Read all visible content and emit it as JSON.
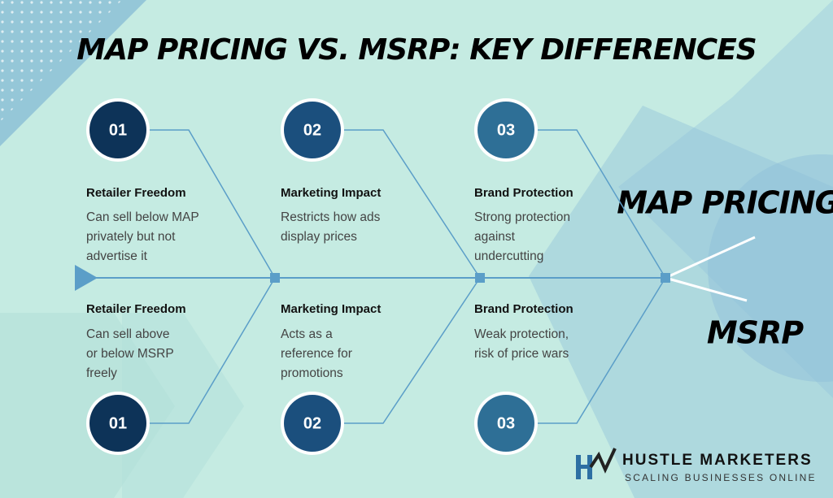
{
  "header": {
    "title": "MAP PRICING VS. MSRP: KEY DIFFERENCES"
  },
  "top": [
    {
      "number": "01",
      "heading": "Retailer Freedom",
      "lines": [
        "Can sell below MAP",
        "privately but not",
        "advertise it"
      ]
    },
    {
      "number": "02",
      "heading": "Marketing Impact",
      "lines": [
        "Restricts how ads",
        "display prices"
      ]
    },
    {
      "number": "03",
      "heading": "Brand Protection",
      "lines": [
        "Strong protection",
        "against",
        "undercutting"
      ]
    }
  ],
  "bottom": [
    {
      "number": "01",
      "heading": "Retailer Freedom",
      "lines": [
        "Can sell above",
        "or below MSRP",
        "freely"
      ]
    },
    {
      "number": "02",
      "heading": "Marketing Impact",
      "lines": [
        "Acts as a",
        "reference for",
        "promotions"
      ]
    },
    {
      "number": "03",
      "heading": "Brand Protection",
      "lines": [
        "Weak protection,",
        "risk of price wars"
      ]
    }
  ],
  "labels": {
    "top": "MAP PRICING",
    "bottom": "MSRP"
  },
  "logo": {
    "name": "HUSTLE MARKETERS",
    "tagline": "SCALING BUSINESSES ONLINE"
  }
}
